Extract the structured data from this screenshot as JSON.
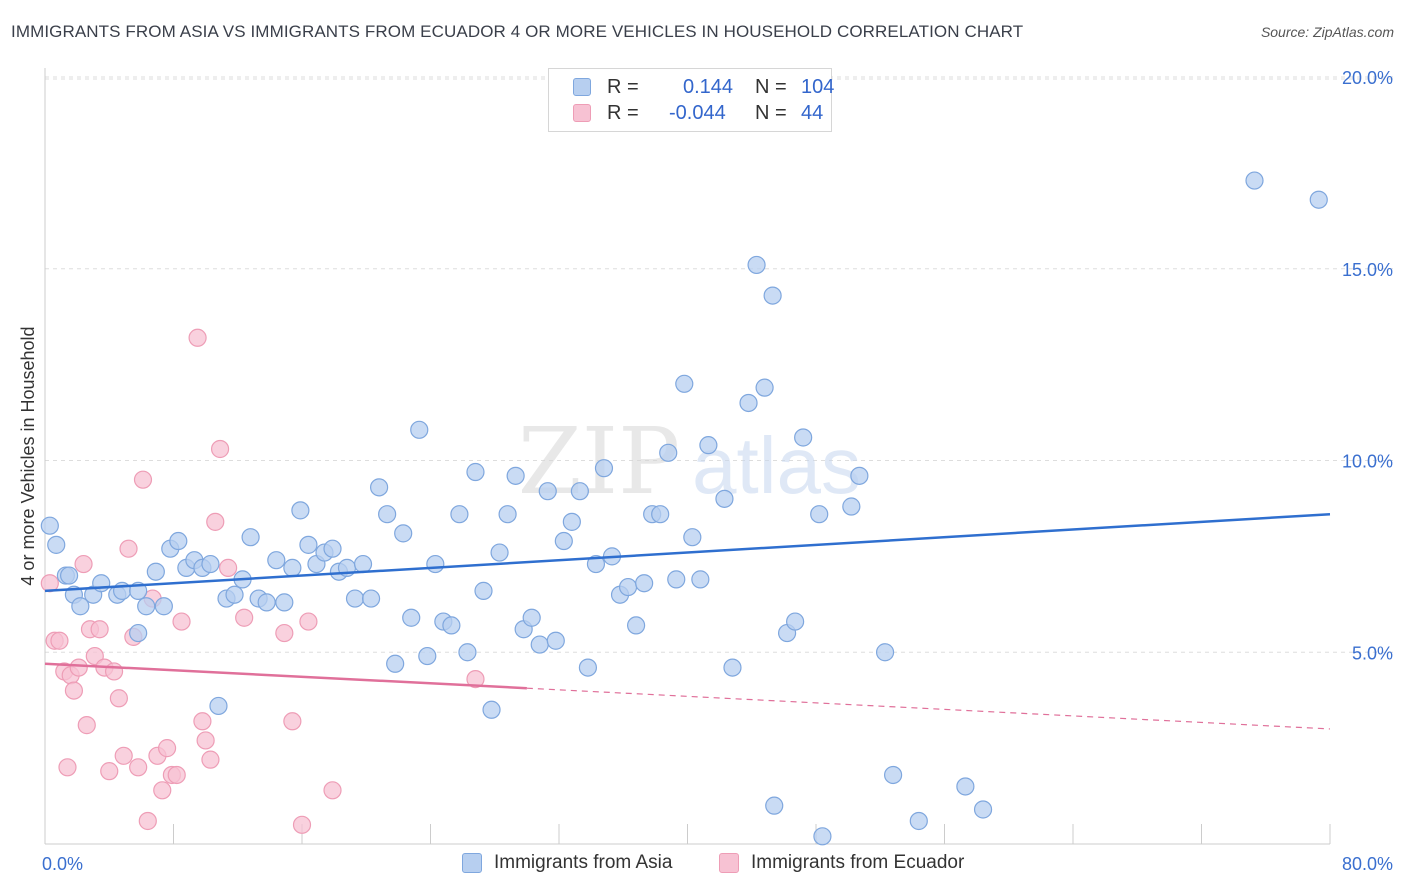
{
  "header": {
    "title": "IMMIGRANTS FROM ASIA VS IMMIGRANTS FROM ECUADOR 4 OR MORE VEHICLES IN HOUSEHOLD CORRELATION CHART",
    "source": "Source: ZipAtlas.com"
  },
  "watermark": {
    "zip": "ZIP",
    "atlas": "atlas"
  },
  "legend": {
    "rows": [
      {
        "r_label": "R =",
        "r_value": "0.144",
        "n_label": "N =",
        "n_value": "104"
      },
      {
        "r_label": "R =",
        "r_value": "-0.044",
        "n_label": "N =",
        "n_value": "44"
      }
    ]
  },
  "bottom_legend": {
    "asia": "Immigrants from Asia",
    "ecuador": "Immigrants from Ecuador"
  },
  "colors": {
    "asia_fill": "#b7cff0",
    "asia_stroke": "#7fa7de",
    "asia_line": "#2f6fcf",
    "ecuador_fill": "#f7c2d3",
    "ecuador_stroke": "#ee9db6",
    "ecuador_line": "#e0709a",
    "tick_label": "#3a6fcf",
    "grid": "#dddddd"
  },
  "chart_data": {
    "type": "scatter",
    "title": "IMMIGRANTS FROM ASIA VS IMMIGRANTS FROM ECUADOR 4 OR MORE VEHICLES IN HOUSEHOLD CORRELATION CHART",
    "xlabel": "",
    "ylabel": "4 or more Vehicles in Household",
    "xlim": [
      0,
      80
    ],
    "ylim": [
      0,
      20.5
    ],
    "x_tick_labels": [
      {
        "value": 0,
        "label": "0.0%"
      },
      {
        "value": 80,
        "label": "80.0%"
      }
    ],
    "y_tick_labels": [
      {
        "value": 5,
        "label": "5.0%"
      },
      {
        "value": 10,
        "label": "10.0%"
      },
      {
        "value": 15,
        "label": "15.0%"
      },
      {
        "value": 20,
        "label": "20.0%"
      }
    ],
    "series": [
      {
        "name": "Immigrants from Asia",
        "r": 0.144,
        "n": 104,
        "trend": {
          "x": [
            0,
            80
          ],
          "y": [
            6.6,
            8.6
          ]
        },
        "points": [
          [
            0.3,
            8.3
          ],
          [
            0.7,
            7.8
          ],
          [
            1.3,
            7.0
          ],
          [
            1.5,
            7.0
          ],
          [
            1.8,
            6.5
          ],
          [
            2.2,
            6.2
          ],
          [
            3.0,
            6.5
          ],
          [
            3.5,
            6.8
          ],
          [
            4.5,
            6.5
          ],
          [
            4.8,
            6.6
          ],
          [
            5.8,
            6.6
          ],
          [
            5.8,
            5.5
          ],
          [
            6.3,
            6.2
          ],
          [
            6.9,
            7.1
          ],
          [
            7.4,
            6.2
          ],
          [
            7.8,
            7.7
          ],
          [
            8.3,
            7.9
          ],
          [
            8.8,
            7.2
          ],
          [
            9.3,
            7.4
          ],
          [
            9.8,
            7.2
          ],
          [
            10.3,
            7.3
          ],
          [
            10.8,
            3.6
          ],
          [
            11.3,
            6.4
          ],
          [
            11.8,
            6.5
          ],
          [
            12.3,
            6.9
          ],
          [
            12.8,
            8.0
          ],
          [
            13.3,
            6.4
          ],
          [
            13.8,
            6.3
          ],
          [
            14.4,
            7.4
          ],
          [
            14.9,
            6.3
          ],
          [
            15.4,
            7.2
          ],
          [
            15.9,
            8.7
          ],
          [
            16.4,
            7.8
          ],
          [
            16.9,
            7.3
          ],
          [
            17.4,
            7.6
          ],
          [
            17.9,
            7.7
          ],
          [
            18.3,
            7.1
          ],
          [
            18.8,
            7.2
          ],
          [
            19.3,
            6.4
          ],
          [
            19.8,
            7.3
          ],
          [
            20.3,
            6.4
          ],
          [
            20.8,
            9.3
          ],
          [
            21.3,
            8.6
          ],
          [
            21.8,
            4.7
          ],
          [
            22.3,
            8.1
          ],
          [
            22.8,
            5.9
          ],
          [
            23.3,
            10.8
          ],
          [
            23.8,
            4.9
          ],
          [
            24.3,
            7.3
          ],
          [
            24.8,
            5.8
          ],
          [
            25.3,
            5.7
          ],
          [
            25.8,
            8.6
          ],
          [
            26.3,
            5.0
          ],
          [
            26.8,
            9.7
          ],
          [
            27.3,
            6.6
          ],
          [
            27.8,
            3.5
          ],
          [
            28.3,
            7.6
          ],
          [
            28.8,
            8.6
          ],
          [
            29.3,
            9.6
          ],
          [
            29.8,
            5.6
          ],
          [
            30.3,
            5.9
          ],
          [
            30.8,
            5.2
          ],
          [
            31.3,
            9.2
          ],
          [
            31.8,
            5.3
          ],
          [
            32.3,
            7.9
          ],
          [
            32.8,
            8.4
          ],
          [
            33.3,
            9.2
          ],
          [
            33.8,
            4.6
          ],
          [
            34.3,
            7.3
          ],
          [
            34.8,
            9.8
          ],
          [
            35.3,
            7.5
          ],
          [
            35.8,
            6.5
          ],
          [
            36.3,
            6.7
          ],
          [
            36.8,
            5.7
          ],
          [
            37.3,
            6.8
          ],
          [
            37.8,
            8.6
          ],
          [
            38.3,
            8.6
          ],
          [
            38.8,
            10.2
          ],
          [
            39.3,
            6.9
          ],
          [
            39.8,
            12.0
          ],
          [
            40.3,
            8.0
          ],
          [
            40.8,
            6.9
          ],
          [
            41.3,
            10.4
          ],
          [
            42.3,
            9.0
          ],
          [
            42.8,
            4.6
          ],
          [
            43.8,
            11.5
          ],
          [
            44.3,
            15.1
          ],
          [
            44.8,
            11.9
          ],
          [
            45.3,
            14.3
          ],
          [
            46.2,
            5.5
          ],
          [
            46.7,
            5.8
          ],
          [
            47.2,
            10.6
          ],
          [
            48.2,
            8.6
          ],
          [
            50.2,
            8.8
          ],
          [
            50.7,
            9.6
          ],
          [
            52.3,
            5.0
          ],
          [
            52.8,
            1.8
          ],
          [
            57.3,
            1.5
          ],
          [
            58.4,
            0.9
          ],
          [
            75.3,
            17.3
          ],
          [
            79.3,
            16.8
          ],
          [
            45.4,
            1.0
          ],
          [
            48.4,
            0.2
          ],
          [
            54.4,
            0.6
          ]
        ]
      },
      {
        "name": "Immigrants from Ecuador",
        "r": -0.044,
        "n": 44,
        "trend": {
          "x": [
            0,
            80
          ],
          "y": [
            4.7,
            3.0
          ],
          "solid_to_x": 30
        },
        "points": [
          [
            0.3,
            6.8
          ],
          [
            0.6,
            5.3
          ],
          [
            0.9,
            5.3
          ],
          [
            1.2,
            4.5
          ],
          [
            1.4,
            2.0
          ],
          [
            1.6,
            4.4
          ],
          [
            1.8,
            4.0
          ],
          [
            2.1,
            4.6
          ],
          [
            2.4,
            7.3
          ],
          [
            2.6,
            3.1
          ],
          [
            2.8,
            5.6
          ],
          [
            3.1,
            4.9
          ],
          [
            3.4,
            5.6
          ],
          [
            3.7,
            4.6
          ],
          [
            4.0,
            1.9
          ],
          [
            4.3,
            4.5
          ],
          [
            4.6,
            3.8
          ],
          [
            4.9,
            2.3
          ],
          [
            5.2,
            7.7
          ],
          [
            5.5,
            5.4
          ],
          [
            5.8,
            2.0
          ],
          [
            6.1,
            9.5
          ],
          [
            6.4,
            0.6
          ],
          [
            6.7,
            6.4
          ],
          [
            7.0,
            2.3
          ],
          [
            7.3,
            1.4
          ],
          [
            7.6,
            2.5
          ],
          [
            7.9,
            1.8
          ],
          [
            8.2,
            1.8
          ],
          [
            8.5,
            5.8
          ],
          [
            9.5,
            13.2
          ],
          [
            9.8,
            3.2
          ],
          [
            10.0,
            2.7
          ],
          [
            10.3,
            2.2
          ],
          [
            10.6,
            8.4
          ],
          [
            10.9,
            10.3
          ],
          [
            11.4,
            7.2
          ],
          [
            12.4,
            5.9
          ],
          [
            14.9,
            5.5
          ],
          [
            15.4,
            3.2
          ],
          [
            16.0,
            0.5
          ],
          [
            16.4,
            5.8
          ],
          [
            17.9,
            1.4
          ],
          [
            26.8,
            4.3
          ]
        ]
      }
    ]
  }
}
